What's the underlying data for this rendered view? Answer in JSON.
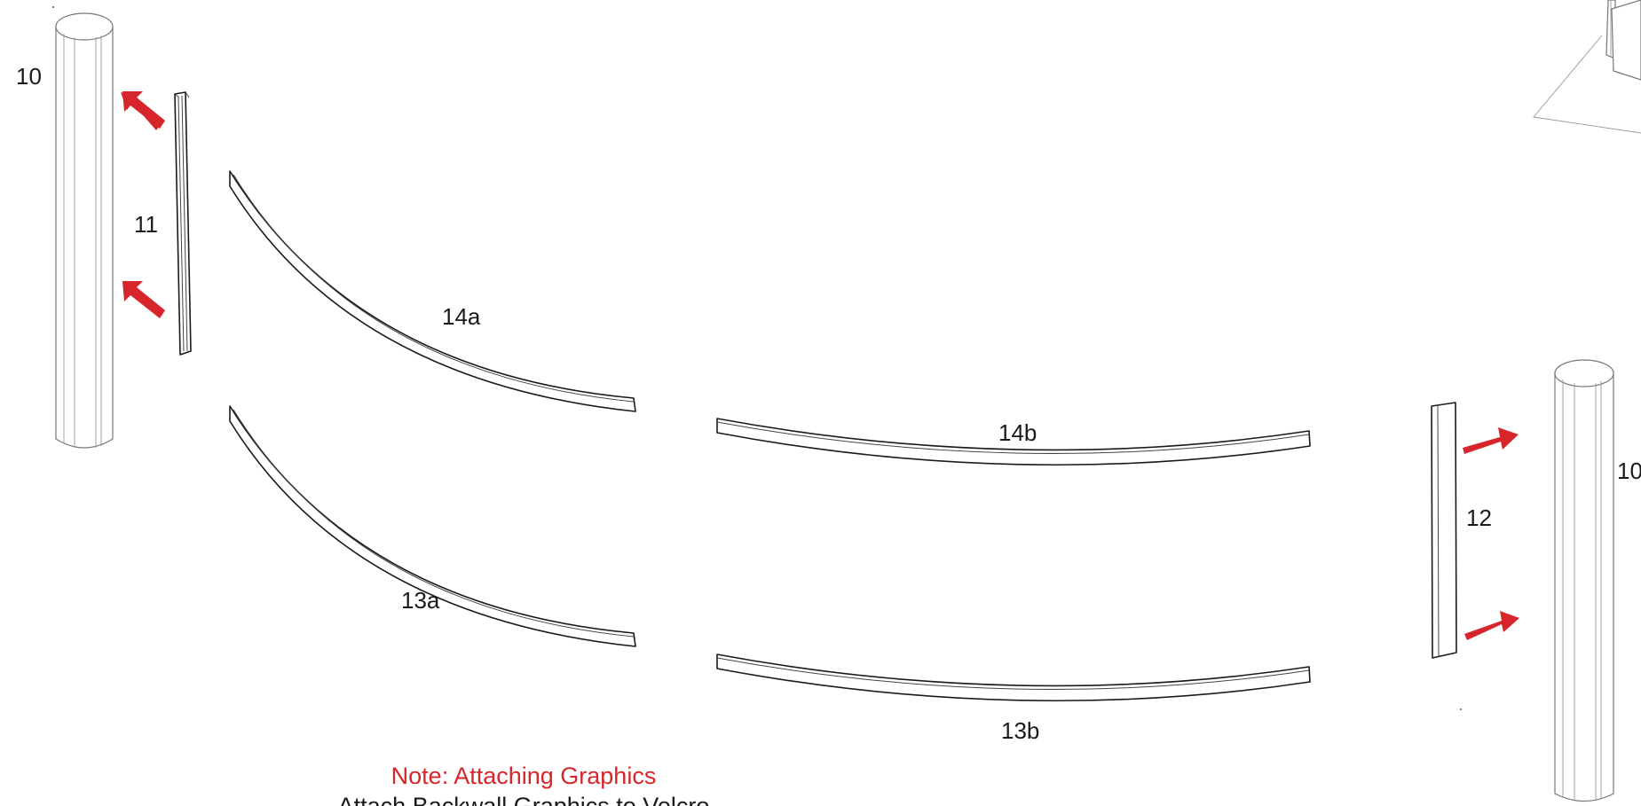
{
  "labels": {
    "pole_left": "10",
    "pole_right": "10",
    "bracket_left": "11",
    "bracket_right": "12",
    "upper_left_rail": "14a",
    "upper_right_rail": "14b",
    "lower_left_rail": "13a",
    "lower_right_rail": "13b"
  },
  "note": {
    "title": "Note: Attaching Graphics",
    "body": "Attach Backwall Graphics to Velcro"
  },
  "colors": {
    "accent": "#d7262b",
    "line": "#1a1a1a",
    "background": "#ffffff"
  }
}
